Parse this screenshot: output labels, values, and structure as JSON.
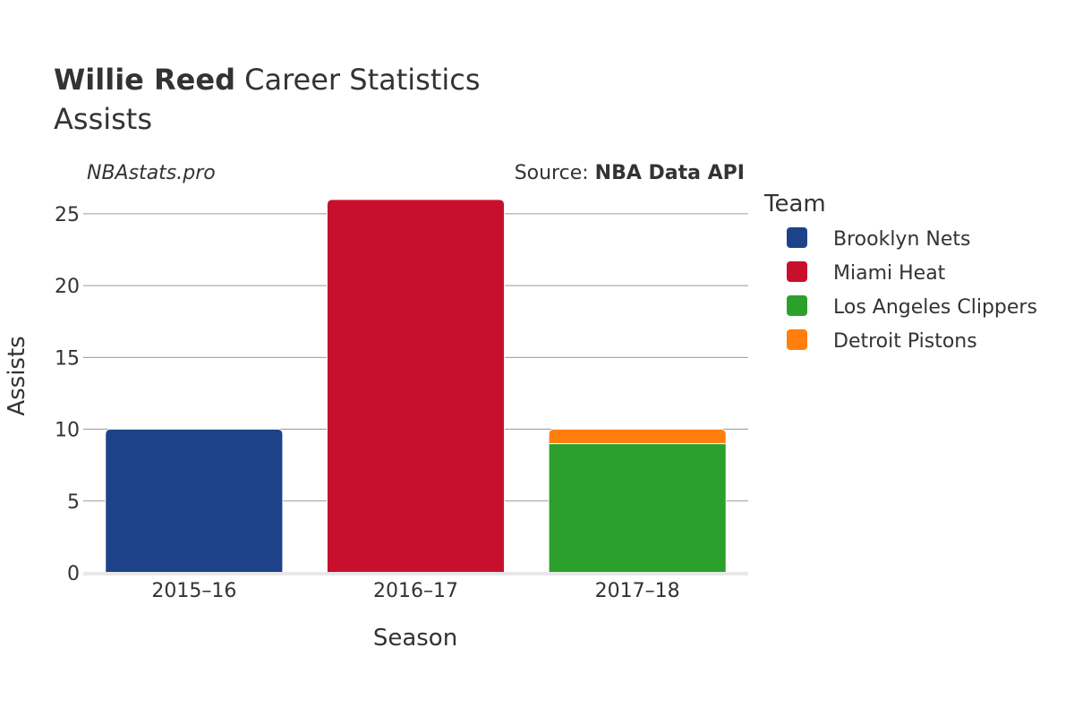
{
  "header": {
    "title_bold": "Willie Reed",
    "title_rest": " Career Statistics",
    "subtitle": "Assists"
  },
  "watermark": "NBAstats.pro",
  "source": {
    "prefix": "Source: ",
    "name": "NBA Data API"
  },
  "legend": {
    "title": "Team",
    "placement": "right"
  },
  "chart_data": {
    "type": "bar",
    "stacked": true,
    "xlabel": "Season",
    "ylabel": "Assists",
    "categories": [
      "2015–16",
      "2016–17",
      "2017–18"
    ],
    "ylim": [
      0,
      26.8
    ],
    "yticks": [
      0,
      5,
      10,
      15,
      20,
      25
    ],
    "grid": true,
    "series": [
      {
        "name": "Brooklyn Nets",
        "color": "#1d428a",
        "values": [
          10,
          0,
          0
        ]
      },
      {
        "name": "Miami Heat",
        "color": "#c8102e",
        "values": [
          0,
          26,
          0
        ]
      },
      {
        "name": "Los Angeles Clippers",
        "color": "#2ca02c",
        "values": [
          0,
          0,
          9
        ]
      },
      {
        "name": "Detroit Pistons",
        "color": "#ff7f0e",
        "values": [
          0,
          0,
          1
        ]
      }
    ]
  }
}
